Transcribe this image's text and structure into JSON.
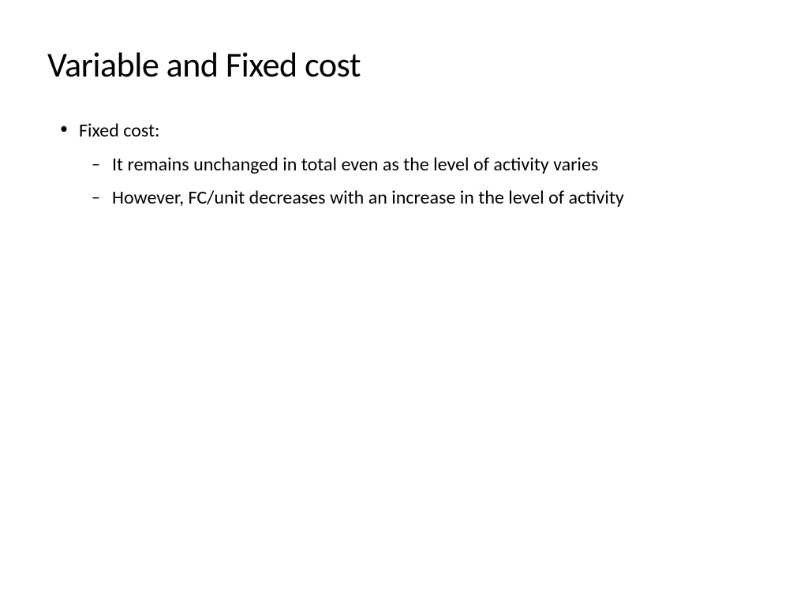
{
  "slide": {
    "title": "Variable and Fixed cost",
    "title_fontsize": 44,
    "title_color": "#000000",
    "background_color": "#ffffff",
    "body_fontsize": 24,
    "body_color": "#000000",
    "bullets": [
      {
        "text": "Fixed cost:",
        "sub_bullets": [
          "It remains unchanged in total even as the level of activity varies",
          "However, FC/unit decreases with an increase in the level of activity"
        ]
      }
    ]
  }
}
